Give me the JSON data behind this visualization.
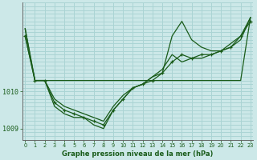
{
  "xlabel": "Graphe pression niveau de la mer (hPa)",
  "x_ticks": [
    0,
    1,
    2,
    3,
    4,
    5,
    6,
    7,
    8,
    9,
    10,
    11,
    12,
    13,
    14,
    15,
    16,
    17,
    18,
    19,
    20,
    21,
    22,
    23
  ],
  "xlim": [
    -0.3,
    23.3
  ],
  "ylim": [
    1008.7,
    1012.4
  ],
  "y_ticks": [
    1009,
    1010
  ],
  "bg_color": "#cce8e8",
  "grid_color": "#aad4d4",
  "line_color": "#1a5c1a",
  "series": [
    {
      "x": [
        0,
        1,
        2,
        3,
        4,
        5,
        6,
        7,
        8,
        9,
        10,
        11,
        12,
        13,
        14,
        15,
        16,
        17,
        18,
        19,
        20,
        21,
        22,
        23
      ],
      "y": [
        1011.5,
        1010.3,
        1010.3,
        1010.3,
        1010.3,
        1010.3,
        1010.3,
        1010.3,
        1010.3,
        1010.3,
        1010.3,
        1010.3,
        1010.3,
        1010.3,
        1010.3,
        1010.3,
        1010.3,
        1010.3,
        1010.3,
        1010.3,
        1010.3,
        1010.3,
        1010.3,
        1012.0
      ],
      "marker": false,
      "lw": 0.9
    },
    {
      "x": [
        0,
        1,
        2,
        3,
        4,
        5,
        6,
        7,
        8,
        9,
        10,
        11,
        12,
        13,
        14,
        15,
        16,
        17,
        18,
        19,
        20,
        21,
        22,
        23
      ],
      "y": [
        1011.7,
        1010.3,
        1010.3,
        1009.8,
        1009.6,
        1009.5,
        1009.4,
        1009.3,
        1009.2,
        1009.6,
        1009.9,
        1010.1,
        1010.2,
        1010.4,
        1010.6,
        1011.0,
        1010.8,
        1010.9,
        1010.9,
        1011.0,
        1011.1,
        1011.2,
        1011.4,
        1012.0
      ],
      "marker": false,
      "lw": 0.9
    },
    {
      "x": [
        0,
        1,
        2,
        3,
        4,
        5,
        6,
        7,
        8,
        9,
        10,
        11,
        12,
        13,
        14,
        15,
        16,
        17,
        18,
        19,
        20,
        21,
        22,
        23
      ],
      "y": [
        1011.7,
        1010.3,
        1010.3,
        1009.6,
        1009.4,
        1009.3,
        1009.3,
        1009.1,
        1009.0,
        1009.5,
        1009.8,
        1010.1,
        1010.2,
        1010.4,
        1010.5,
        1011.5,
        1011.9,
        1011.4,
        1011.2,
        1011.1,
        1011.1,
        1011.3,
        1011.5,
        1012.0
      ],
      "marker": false,
      "lw": 0.9
    },
    {
      "x": [
        0,
        1,
        2,
        3,
        4,
        5,
        6,
        7,
        8,
        9,
        10,
        11,
        12,
        13,
        14,
        15,
        16,
        17,
        18,
        19,
        20,
        21,
        22,
        23
      ],
      "y": [
        1011.5,
        1010.3,
        1010.3,
        1009.7,
        1009.5,
        1009.4,
        1009.3,
        1009.2,
        1009.1,
        1009.5,
        1009.8,
        1010.1,
        1010.2,
        1010.3,
        1010.5,
        1010.8,
        1011.0,
        1010.9,
        1011.0,
        1011.0,
        1011.1,
        1011.2,
        1011.5,
        1011.9
      ],
      "marker": true,
      "lw": 0.9
    }
  ]
}
